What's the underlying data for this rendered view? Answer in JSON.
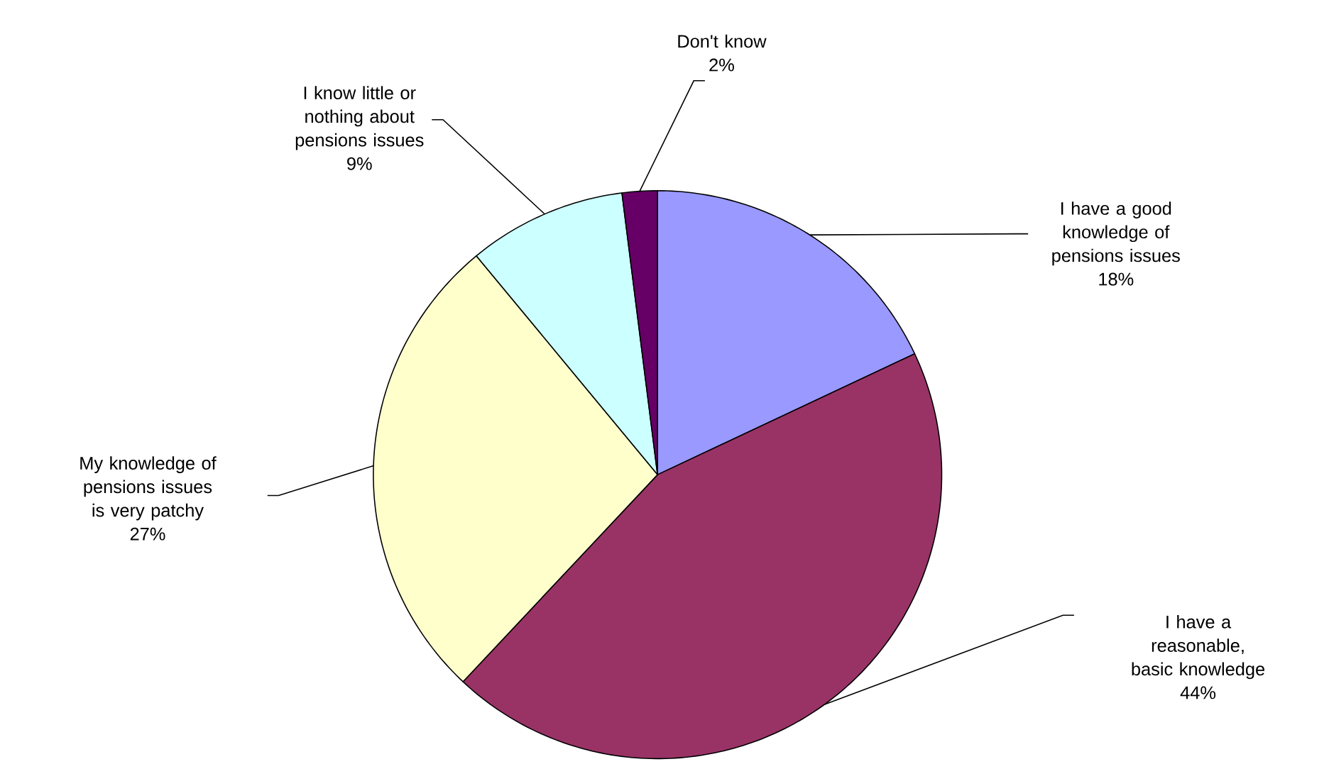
{
  "chart_data": {
    "type": "pie",
    "categories": [
      "I have a good knowledge of pensions issues",
      "I have a reasonable, basic knowledge",
      "My knowledge of pensions issues is very patchy",
      "I know little or nothing about pensions issues",
      "Don't know"
    ],
    "values": [
      18,
      44,
      27,
      9,
      2
    ],
    "value_labels": [
      "18%",
      "44%",
      "27%",
      "9%",
      "2%"
    ],
    "colors": [
      "#9999ff",
      "#993366",
      "#ffffcc",
      "#ccffff",
      "#660066"
    ]
  }
}
